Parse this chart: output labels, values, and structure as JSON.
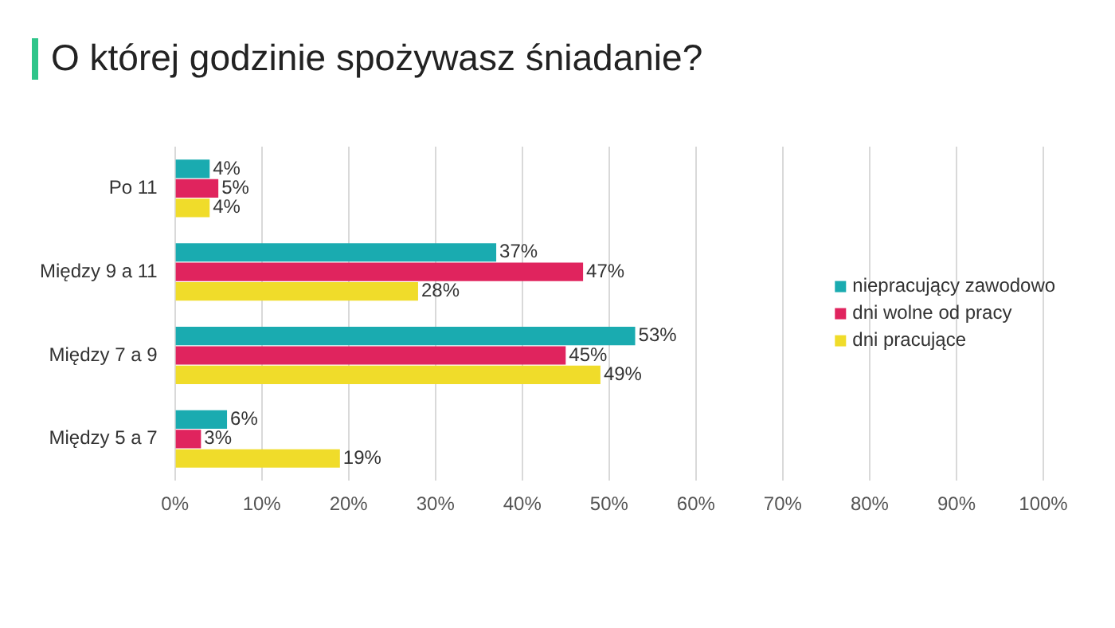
{
  "chart_data": {
    "type": "bar",
    "orientation": "horizontal",
    "title": "O której godzinie spożywasz śniadanie?",
    "categories": [
      "Po 11",
      "Między 9 a 11",
      "Między 7 a 9",
      "Między 5 a 7"
    ],
    "series": [
      {
        "name": "niepracujący zawodowo",
        "color": "#1aabb0",
        "values": [
          4,
          37,
          53,
          6
        ],
        "value_labels": [
          "4%",
          "37%",
          "53%",
          "6%"
        ]
      },
      {
        "name": "dni wolne od pracy",
        "color": "#e0245e",
        "values": [
          5,
          47,
          45,
          3
        ],
        "value_labels": [
          "5%",
          "47%",
          "45%",
          "3%"
        ]
      },
      {
        "name": "dni pracujące",
        "color": "#f0dc2a",
        "values": [
          4,
          28,
          49,
          19
        ],
        "value_labels": [
          "4%",
          "28%",
          "49%",
          "19%"
        ]
      }
    ],
    "xlim": [
      0,
      100
    ],
    "xticks": [
      {
        "value": 0,
        "label": "0%"
      },
      {
        "value": 10,
        "label": "10%"
      },
      {
        "value": 20,
        "label": "20%"
      },
      {
        "value": 30,
        "label": "30%"
      },
      {
        "value": 40,
        "label": "40%"
      },
      {
        "value": 50,
        "label": "50%"
      },
      {
        "value": 60,
        "label": "60%"
      },
      {
        "value": 70,
        "label": "70%"
      },
      {
        "value": 80,
        "label": "80%"
      },
      {
        "value": 90,
        "label": "90%"
      },
      {
        "value": 100,
        "label": "100%"
      }
    ],
    "grid": "x",
    "legend": "right"
  }
}
